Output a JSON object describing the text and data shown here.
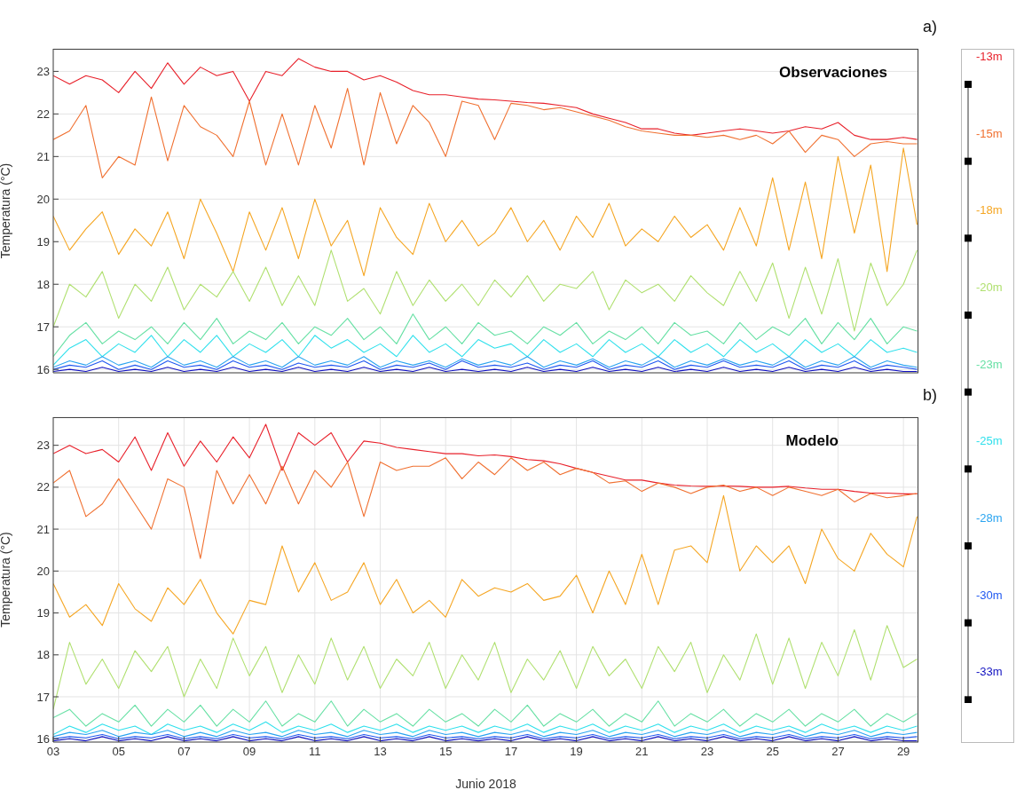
{
  "chart_data": [
    {
      "type": "line",
      "title": "Observaciones",
      "ylabel": "Temperatura (°C)",
      "annotations": [
        "a)"
      ],
      "grid": true,
      "legend": "right",
      "tick_labels": "y",
      "x": [
        "2018-06-03",
        "2018-06-03T12:00",
        "2018-06-04",
        "2018-06-04T12:00",
        "2018-06-05",
        "2018-06-05T12:00",
        "2018-06-06",
        "2018-06-06T12:00",
        "2018-06-07",
        "2018-06-07T12:00",
        "2018-06-08",
        "2018-06-08T12:00",
        "2018-06-09",
        "2018-06-09T12:00",
        "2018-06-10",
        "2018-06-10T12:00",
        "2018-06-11",
        "2018-06-11T12:00",
        "2018-06-12",
        "2018-06-12T12:00",
        "2018-06-13",
        "2018-06-13T12:00",
        "2018-06-14",
        "2018-06-14T12:00",
        "2018-06-15",
        "2018-06-15T12:00",
        "2018-06-16",
        "2018-06-16T12:00",
        "2018-06-17",
        "2018-06-17T12:00",
        "2018-06-18",
        "2018-06-18T12:00",
        "2018-06-19",
        "2018-06-19T12:00",
        "2018-06-20",
        "2018-06-20T12:00",
        "2018-06-21",
        "2018-06-21T12:00",
        "2018-06-22",
        "2018-06-22T12:00",
        "2018-06-23",
        "2018-06-23T12:00",
        "2018-06-24",
        "2018-06-24T12:00",
        "2018-06-25",
        "2018-06-25T12:00",
        "2018-06-26",
        "2018-06-26T12:00",
        "2018-06-27",
        "2018-06-27T12:00",
        "2018-06-28",
        "2018-06-28T12:00",
        "2018-06-29",
        "2018-06-29T10:00"
      ],
      "xlim": [
        "2018-06-03",
        "2018-06-29T11:00"
      ],
      "xticks": [
        {
          "value": "2018-06-03",
          "label": null
        },
        {
          "value": "2018-06-05",
          "label": null
        },
        {
          "value": "2018-06-07",
          "label": null
        },
        {
          "value": "2018-06-09",
          "label": null
        },
        {
          "value": "2018-06-11",
          "label": null
        },
        {
          "value": "2018-06-13",
          "label": null
        },
        {
          "value": "2018-06-15",
          "label": null
        },
        {
          "value": "2018-06-17",
          "label": null
        },
        {
          "value": "2018-06-19",
          "label": null
        },
        {
          "value": "2018-06-21",
          "label": null
        },
        {
          "value": "2018-06-23",
          "label": null
        },
        {
          "value": "2018-06-25",
          "label": null
        },
        {
          "value": "2018-06-27",
          "label": null
        },
        {
          "value": "2018-06-29",
          "label": null
        }
      ],
      "ylim": [
        15.92,
        23.53
      ],
      "yticks": [
        16,
        17,
        18,
        19,
        20,
        21,
        22,
        23
      ],
      "series": [
        {
          "name": "-13m",
          "color": "#e8202a",
          "values": [
            22.9,
            22.7,
            22.9,
            22.8,
            22.5,
            23.0,
            22.6,
            23.2,
            22.7,
            23.1,
            22.9,
            23.0,
            22.3,
            23.0,
            22.9,
            23.3,
            23.1,
            23.0,
            23.0,
            22.8,
            22.9,
            22.75,
            22.55,
            22.45,
            22.45,
            22.4,
            22.35,
            22.33,
            22.3,
            22.27,
            22.25,
            22.2,
            22.15,
            22.0,
            21.9,
            21.8,
            21.65,
            21.65,
            21.55,
            21.5,
            21.55,
            21.6,
            21.65,
            21.6,
            21.55,
            21.6,
            21.7,
            21.65,
            21.8,
            21.5,
            21.4,
            21.4,
            21.45,
            21.4
          ]
        },
        {
          "name": "-15m",
          "color": "#f07030",
          "values": [
            21.4,
            21.6,
            22.2,
            20.5,
            21.0,
            20.8,
            22.4,
            20.9,
            22.2,
            21.7,
            21.5,
            21.0,
            22.3,
            20.8,
            22.0,
            20.8,
            22.2,
            21.2,
            22.6,
            20.8,
            22.5,
            21.3,
            22.2,
            21.8,
            21.0,
            22.3,
            22.2,
            21.4,
            22.25,
            22.2,
            22.1,
            22.15,
            22.05,
            21.95,
            21.85,
            21.7,
            21.6,
            21.55,
            21.5,
            21.5,
            21.45,
            21.5,
            21.4,
            21.5,
            21.3,
            21.6,
            21.1,
            21.5,
            21.4,
            21.0,
            21.3,
            21.35,
            21.3,
            21.3
          ]
        },
        {
          "name": "-18m",
          "color": "#f5a623",
          "values": [
            19.6,
            18.8,
            19.3,
            19.7,
            18.7,
            19.3,
            18.9,
            19.7,
            18.6,
            20.0,
            19.2,
            18.3,
            19.7,
            18.8,
            19.8,
            18.6,
            20.0,
            18.9,
            19.5,
            18.2,
            19.8,
            19.1,
            18.7,
            19.9,
            19.0,
            19.5,
            18.9,
            19.2,
            19.8,
            19.0,
            19.5,
            18.8,
            19.6,
            19.1,
            19.9,
            18.9,
            19.3,
            19.0,
            19.6,
            19.1,
            19.4,
            18.8,
            19.8,
            18.9,
            20.5,
            18.8,
            20.4,
            18.6,
            21.0,
            19.2,
            20.8,
            18.3,
            21.2,
            19.4
          ]
        },
        {
          "name": "-20m",
          "color": "#b0e070",
          "values": [
            17.0,
            18.0,
            17.7,
            18.3,
            17.2,
            18.0,
            17.6,
            18.4,
            17.4,
            18.0,
            17.7,
            18.3,
            17.6,
            18.4,
            17.5,
            18.2,
            17.5,
            18.8,
            17.6,
            17.9,
            17.3,
            18.3,
            17.5,
            18.1,
            17.6,
            18.0,
            17.5,
            18.1,
            17.7,
            18.2,
            17.6,
            18.0,
            17.9,
            18.3,
            17.4,
            18.1,
            17.8,
            18.0,
            17.6,
            18.2,
            17.8,
            17.5,
            18.3,
            17.6,
            18.5,
            17.2,
            18.4,
            17.3,
            18.6,
            16.9,
            18.5,
            17.5,
            18.0,
            18.8
          ]
        },
        {
          "name": "-23m",
          "color": "#66e0a4",
          "values": [
            16.3,
            16.8,
            17.1,
            16.6,
            16.9,
            16.7,
            17.0,
            16.6,
            17.1,
            16.7,
            17.2,
            16.6,
            16.9,
            16.7,
            17.1,
            16.6,
            17.0,
            16.8,
            17.2,
            16.7,
            17.0,
            16.6,
            17.3,
            16.7,
            17.0,
            16.6,
            17.1,
            16.8,
            16.9,
            16.6,
            17.0,
            16.8,
            17.1,
            16.6,
            16.9,
            16.7,
            17.0,
            16.6,
            17.1,
            16.8,
            16.9,
            16.6,
            17.1,
            16.7,
            17.0,
            16.8,
            17.2,
            16.6,
            17.1,
            16.7,
            17.2,
            16.6,
            17.0,
            16.9
          ]
        },
        {
          "name": "-25m",
          "color": "#30e0ec",
          "values": [
            16.1,
            16.5,
            16.7,
            16.3,
            16.6,
            16.4,
            16.8,
            16.3,
            16.7,
            16.4,
            16.8,
            16.3,
            16.6,
            16.4,
            16.7,
            16.3,
            16.8,
            16.5,
            16.7,
            16.4,
            16.6,
            16.3,
            16.8,
            16.4,
            16.6,
            16.3,
            16.7,
            16.5,
            16.6,
            16.3,
            16.7,
            16.4,
            16.6,
            16.3,
            16.7,
            16.4,
            16.6,
            16.3,
            16.7,
            16.4,
            16.6,
            16.3,
            16.7,
            16.4,
            16.6,
            16.3,
            16.7,
            16.4,
            16.6,
            16.3,
            16.7,
            16.4,
            16.5,
            16.4
          ]
        },
        {
          "name": "-28m",
          "color": "#2aa4f0",
          "values": [
            16.05,
            16.2,
            16.1,
            16.3,
            16.1,
            16.2,
            16.05,
            16.3,
            16.1,
            16.2,
            16.05,
            16.3,
            16.1,
            16.2,
            16.05,
            16.3,
            16.1,
            16.2,
            16.1,
            16.3,
            16.05,
            16.2,
            16.1,
            16.2,
            16.05,
            16.25,
            16.1,
            16.2,
            16.1,
            16.3,
            16.05,
            16.2,
            16.1,
            16.25,
            16.05,
            16.2,
            16.1,
            16.3,
            16.05,
            16.2,
            16.1,
            16.25,
            16.1,
            16.2,
            16.1,
            16.3,
            16.05,
            16.2,
            16.1,
            16.3,
            16.05,
            16.2,
            16.1,
            16.05
          ]
        },
        {
          "name": "-30m",
          "color": "#2058f0",
          "values": [
            16.0,
            16.1,
            16.05,
            16.2,
            16.0,
            16.1,
            16.0,
            16.2,
            16.05,
            16.1,
            16.0,
            16.2,
            16.05,
            16.1,
            16.0,
            16.15,
            16.05,
            16.1,
            16.05,
            16.2,
            16.0,
            16.1,
            16.05,
            16.15,
            16.0,
            16.2,
            16.05,
            16.1,
            16.05,
            16.15,
            16.0,
            16.1,
            16.05,
            16.2,
            16.0,
            16.1,
            16.05,
            16.2,
            16.0,
            16.1,
            16.05,
            16.2,
            16.05,
            16.1,
            16.05,
            16.2,
            16.0,
            16.1,
            16.05,
            16.2,
            16.0,
            16.1,
            16.05,
            16.0
          ]
        },
        {
          "name": "-33m",
          "color": "#1010c0",
          "values": [
            15.95,
            16.0,
            15.95,
            16.05,
            15.95,
            16.0,
            15.95,
            16.05,
            15.95,
            16.0,
            15.95,
            16.05,
            15.95,
            16.0,
            15.95,
            16.05,
            15.95,
            16.0,
            15.95,
            16.05,
            15.95,
            16.0,
            15.95,
            16.05,
            15.95,
            16.0,
            15.95,
            16.0,
            15.95,
            16.05,
            15.95,
            16.0,
            15.95,
            16.05,
            15.95,
            16.0,
            15.95,
            16.05,
            15.95,
            16.0,
            15.95,
            16.05,
            15.95,
            16.0,
            15.95,
            16.05,
            15.95,
            16.0,
            15.95,
            16.05,
            15.95,
            16.0,
            15.95,
            15.95
          ]
        }
      ]
    },
    {
      "type": "line",
      "title": "Modelo",
      "ylabel": "Temperatura (°C)",
      "xlabel": "Junio 2018",
      "annotations": [
        "b)"
      ],
      "grid": true,
      "x": [
        "2018-06-03",
        "2018-06-03T12:00",
        "2018-06-04",
        "2018-06-04T12:00",
        "2018-06-05",
        "2018-06-05T12:00",
        "2018-06-06",
        "2018-06-06T12:00",
        "2018-06-07",
        "2018-06-07T12:00",
        "2018-06-08",
        "2018-06-08T12:00",
        "2018-06-09",
        "2018-06-09T12:00",
        "2018-06-10",
        "2018-06-10T12:00",
        "2018-06-11",
        "2018-06-11T12:00",
        "2018-06-12",
        "2018-06-12T12:00",
        "2018-06-13",
        "2018-06-13T12:00",
        "2018-06-14",
        "2018-06-14T12:00",
        "2018-06-15",
        "2018-06-15T12:00",
        "2018-06-16",
        "2018-06-16T12:00",
        "2018-06-17",
        "2018-06-17T12:00",
        "2018-06-18",
        "2018-06-18T12:00",
        "2018-06-19",
        "2018-06-19T12:00",
        "2018-06-20",
        "2018-06-20T12:00",
        "2018-06-21",
        "2018-06-21T12:00",
        "2018-06-22",
        "2018-06-22T12:00",
        "2018-06-23",
        "2018-06-23T12:00",
        "2018-06-24",
        "2018-06-24T12:00",
        "2018-06-25",
        "2018-06-25T12:00",
        "2018-06-26",
        "2018-06-26T12:00",
        "2018-06-27",
        "2018-06-27T12:00",
        "2018-06-28",
        "2018-06-28T12:00",
        "2018-06-29",
        "2018-06-29T10:00"
      ],
      "xlim": [
        "2018-06-03",
        "2018-06-29T11:00"
      ],
      "xticks": [
        {
          "value": "2018-06-03",
          "label": "03"
        },
        {
          "value": "2018-06-05",
          "label": "05"
        },
        {
          "value": "2018-06-07",
          "label": "07"
        },
        {
          "value": "2018-06-09",
          "label": "09"
        },
        {
          "value": "2018-06-11",
          "label": "11"
        },
        {
          "value": "2018-06-13",
          "label": "13"
        },
        {
          "value": "2018-06-15",
          "label": "15"
        },
        {
          "value": "2018-06-17",
          "label": "17"
        },
        {
          "value": "2018-06-19",
          "label": "19"
        },
        {
          "value": "2018-06-21",
          "label": "21"
        },
        {
          "value": "2018-06-23",
          "label": "23"
        },
        {
          "value": "2018-06-25",
          "label": "25"
        },
        {
          "value": "2018-06-27",
          "label": "27"
        },
        {
          "value": "2018-06-29",
          "label": "29"
        }
      ],
      "ylim": [
        15.92,
        23.67
      ],
      "yticks": [
        16,
        17,
        18,
        19,
        20,
        21,
        22,
        23
      ],
      "series": [
        {
          "color": "#e8202a",
          "values": [
            22.8,
            23.0,
            22.8,
            22.9,
            22.6,
            23.2,
            22.4,
            23.3,
            22.5,
            23.1,
            22.6,
            23.2,
            22.7,
            23.5,
            22.4,
            23.3,
            23.0,
            23.3,
            22.6,
            23.1,
            23.05,
            22.95,
            22.9,
            22.85,
            22.8,
            22.8,
            22.75,
            22.77,
            22.73,
            22.66,
            22.63,
            22.56,
            22.45,
            22.35,
            22.26,
            22.17,
            22.17,
            22.1,
            22.05,
            22.03,
            22.02,
            22.03,
            22.02,
            22.0,
            22.0,
            22.02,
            21.98,
            21.95,
            21.95,
            21.9,
            21.86,
            21.86,
            21.84,
            21.84
          ]
        },
        {
          "color": "#f07030",
          "values": [
            22.1,
            22.4,
            21.3,
            21.6,
            22.2,
            21.6,
            21.0,
            22.2,
            22.0,
            20.3,
            22.4,
            21.6,
            22.3,
            21.6,
            22.5,
            21.6,
            22.4,
            22.0,
            22.6,
            21.3,
            22.6,
            22.4,
            22.5,
            22.5,
            22.7,
            22.2,
            22.6,
            22.3,
            22.7,
            22.4,
            22.6,
            22.3,
            22.45,
            22.35,
            22.1,
            22.15,
            21.9,
            22.1,
            22.0,
            21.85,
            22.0,
            22.05,
            21.9,
            22.0,
            21.8,
            22.0,
            21.9,
            21.8,
            21.95,
            21.65,
            21.85,
            21.75,
            21.8,
            21.85
          ]
        },
        {
          "color": "#f5a623",
          "values": [
            19.7,
            18.9,
            19.2,
            18.7,
            19.7,
            19.1,
            18.8,
            19.6,
            19.2,
            19.8,
            19.0,
            18.5,
            19.3,
            19.2,
            20.6,
            19.5,
            20.2,
            19.3,
            19.5,
            20.2,
            19.2,
            19.8,
            19.0,
            19.3,
            18.9,
            19.8,
            19.4,
            19.6,
            19.5,
            19.7,
            19.3,
            19.4,
            19.9,
            19.0,
            20.0,
            19.2,
            20.4,
            19.2,
            20.5,
            20.6,
            20.2,
            21.8,
            20.0,
            20.6,
            20.2,
            20.6,
            19.7,
            21.0,
            20.3,
            20.0,
            20.9,
            20.4,
            20.1,
            21.3
          ]
        },
        {
          "color": "#b0e070",
          "values": [
            16.7,
            18.3,
            17.3,
            17.9,
            17.2,
            18.1,
            17.6,
            18.2,
            17.0,
            17.9,
            17.2,
            18.4,
            17.5,
            18.2,
            17.1,
            18.0,
            17.3,
            18.4,
            17.4,
            18.2,
            17.2,
            17.9,
            17.5,
            18.3,
            17.2,
            18.0,
            17.4,
            18.3,
            17.1,
            17.9,
            17.4,
            18.1,
            17.2,
            18.2,
            17.5,
            17.9,
            17.2,
            18.2,
            17.6,
            18.3,
            17.1,
            18.0,
            17.4,
            18.5,
            17.3,
            18.4,
            17.2,
            18.3,
            17.5,
            18.6,
            17.4,
            18.7,
            17.7,
            17.9
          ]
        },
        {
          "color": "#66e0a4",
          "values": [
            16.5,
            16.7,
            16.3,
            16.6,
            16.4,
            16.8,
            16.3,
            16.7,
            16.4,
            16.8,
            16.3,
            16.7,
            16.4,
            16.9,
            16.3,
            16.6,
            16.4,
            16.9,
            16.3,
            16.7,
            16.4,
            16.6,
            16.3,
            16.7,
            16.4,
            16.6,
            16.3,
            16.7,
            16.4,
            16.8,
            16.3,
            16.6,
            16.4,
            16.7,
            16.3,
            16.6,
            16.4,
            16.9,
            16.3,
            16.6,
            16.4,
            16.7,
            16.3,
            16.6,
            16.4,
            16.7,
            16.3,
            16.6,
            16.4,
            16.7,
            16.3,
            16.6,
            16.4,
            16.6
          ]
        },
        {
          "color": "#30e0ec",
          "values": [
            16.1,
            16.3,
            16.15,
            16.35,
            16.2,
            16.3,
            16.1,
            16.35,
            16.2,
            16.3,
            16.15,
            16.35,
            16.2,
            16.4,
            16.15,
            16.3,
            16.2,
            16.35,
            16.15,
            16.3,
            16.2,
            16.35,
            16.15,
            16.3,
            16.2,
            16.3,
            16.15,
            16.3,
            16.2,
            16.35,
            16.15,
            16.3,
            16.2,
            16.35,
            16.15,
            16.3,
            16.2,
            16.35,
            16.15,
            16.3,
            16.2,
            16.35,
            16.15,
            16.3,
            16.2,
            16.3,
            16.15,
            16.35,
            16.2,
            16.3,
            16.15,
            16.3,
            16.2,
            16.3
          ]
        },
        {
          "color": "#2aa4f0",
          "values": [
            16.05,
            16.15,
            16.1,
            16.2,
            16.05,
            16.15,
            16.1,
            16.2,
            16.05,
            16.15,
            16.05,
            16.2,
            16.1,
            16.15,
            16.05,
            16.2,
            16.1,
            16.15,
            16.05,
            16.2,
            16.1,
            16.15,
            16.05,
            16.2,
            16.1,
            16.15,
            16.05,
            16.15,
            16.1,
            16.2,
            16.05,
            16.15,
            16.1,
            16.2,
            16.05,
            16.15,
            16.1,
            16.2,
            16.05,
            16.15,
            16.1,
            16.2,
            16.05,
            16.15,
            16.1,
            16.2,
            16.05,
            16.15,
            16.1,
            16.2,
            16.05,
            16.15,
            16.1,
            16.15
          ]
        },
        {
          "color": "#2058f0",
          "values": [
            16.0,
            16.05,
            16.02,
            16.1,
            16.0,
            16.05,
            16.02,
            16.1,
            16.0,
            16.05,
            16.0,
            16.1,
            16.02,
            16.05,
            16.0,
            16.1,
            16.02,
            16.05,
            16.0,
            16.1,
            16.02,
            16.05,
            16.0,
            16.1,
            16.02,
            16.05,
            16.0,
            16.05,
            16.02,
            16.1,
            16.0,
            16.05,
            16.02,
            16.1,
            16.0,
            16.05,
            16.02,
            16.1,
            16.0,
            16.05,
            16.02,
            16.1,
            16.0,
            16.05,
            16.02,
            16.1,
            16.0,
            16.05,
            16.02,
            16.1,
            16.0,
            16.05,
            16.02,
            16.05
          ]
        },
        {
          "color": "#1010c0",
          "values": [
            15.95,
            16.0,
            15.95,
            16.05,
            15.95,
            16.0,
            15.95,
            16.05,
            15.95,
            16.0,
            15.95,
            16.05,
            15.95,
            16.0,
            15.95,
            16.05,
            15.95,
            16.0,
            15.95,
            16.05,
            15.95,
            16.0,
            15.95,
            16.05,
            15.95,
            16.0,
            15.95,
            16.0,
            15.95,
            16.05,
            15.95,
            16.0,
            15.95,
            16.05,
            15.95,
            16.0,
            15.95,
            16.05,
            15.95,
            16.0,
            15.95,
            16.05,
            15.95,
            16.0,
            15.95,
            16.05,
            15.95,
            16.0,
            15.95,
            16.05,
            15.95,
            16.0,
            15.95,
            15.95
          ]
        }
      ]
    }
  ]
}
